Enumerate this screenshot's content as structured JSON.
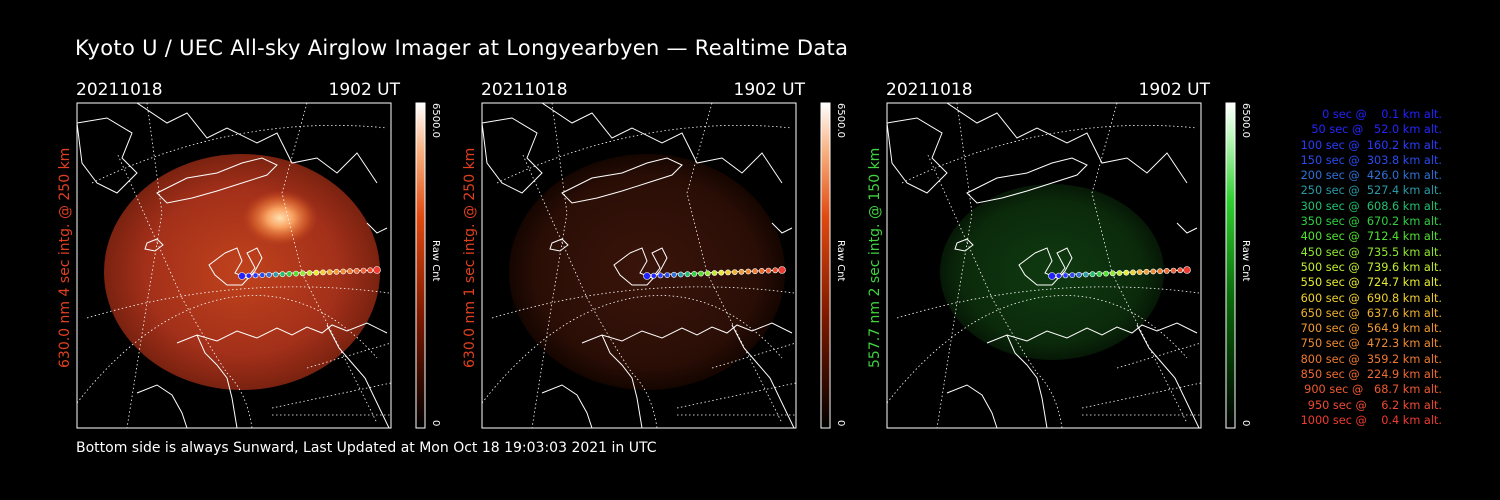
{
  "title": "Kyoto U / UEC All-sky Airglow Imager at Longyearbyen — Realtime Data",
  "footer": "Bottom side is always Sunward, Last Updated at Mon Oct 18 19:03:03 2021 in UTC",
  "colors": {
    "red": "#e03a1a",
    "green": "#35d035",
    "background": "#000000"
  },
  "panels": [
    {
      "date": "20211018",
      "time": "1902 UT",
      "side_label": "630.0 nm 4 sec intg. @ 250 km",
      "side_color": "#e0401e",
      "cbar_max": "6500.0",
      "cbar_min": "0",
      "cbar_label": "Raw Cnt",
      "cbar_color": "red",
      "glow": "bright-red"
    },
    {
      "date": "20211018",
      "time": "1902 UT",
      "side_label": "630.0 nm 1 sec intg. @ 250 km",
      "side_color": "#e0401e",
      "cbar_max": "6500.0",
      "cbar_min": "0",
      "cbar_label": "Raw Cnt",
      "cbar_color": "red",
      "glow": "dim-red"
    },
    {
      "date": "20211018",
      "time": "1902 UT",
      "side_label": "557.7 nm 2 sec intg. @ 150 km",
      "side_color": "#3fd43f",
      "cbar_max": "6500.0",
      "cbar_min": "0",
      "cbar_label": "Raw Cnt",
      "cbar_color": "green",
      "glow": "dim-green"
    }
  ],
  "legend": [
    {
      "text": "0 sec @    0.1 km alt.",
      "color": "#2222ff"
    },
    {
      "text": "50 sec @   52.0 km alt.",
      "color": "#2626ff"
    },
    {
      "text": "100 sec @  160.2 km alt.",
      "color": "#2a3cff"
    },
    {
      "text": "150 sec @  303.8 km alt.",
      "color": "#2a4cf0"
    },
    {
      "text": "200 sec @  426.0 km alt.",
      "color": "#3070d8"
    },
    {
      "text": "250 sec @  527.4 km alt.",
      "color": "#2a9aa8"
    },
    {
      "text": "300 sec @  608.6 km alt.",
      "color": "#20c070"
    },
    {
      "text": "350 sec @  670.2 km alt.",
      "color": "#30d040"
    },
    {
      "text": "400 sec @  712.4 km alt.",
      "color": "#50e030"
    },
    {
      "text": "450 sec @  735.5 km alt.",
      "color": "#90e830"
    },
    {
      "text": "500 sec @  739.6 km alt.",
      "color": "#c0ec30"
    },
    {
      "text": "550 sec @  724.7 km alt.",
      "color": "#e8ec30"
    },
    {
      "text": "600 sec @  690.8 km alt.",
      "color": "#f0d030"
    },
    {
      "text": "650 sec @  637.6 km alt.",
      "color": "#f0b030"
    },
    {
      "text": "700 sec @  564.9 km alt.",
      "color": "#f09a30"
    },
    {
      "text": "750 sec @  472.3 km alt.",
      "color": "#f08a30"
    },
    {
      "text": "800 sec @  359.2 km alt.",
      "color": "#f07a30"
    },
    {
      "text": "850 sec @  224.9 km alt.",
      "color": "#f06a30"
    },
    {
      "text": "900 sec @   68.7 km alt.",
      "color": "#f05a30"
    },
    {
      "text": "950 sec @    6.2 km alt.",
      "color": "#f04a30"
    },
    {
      "text": "1000 sec @    0.4 km alt.",
      "color": "#f03a30"
    }
  ]
}
